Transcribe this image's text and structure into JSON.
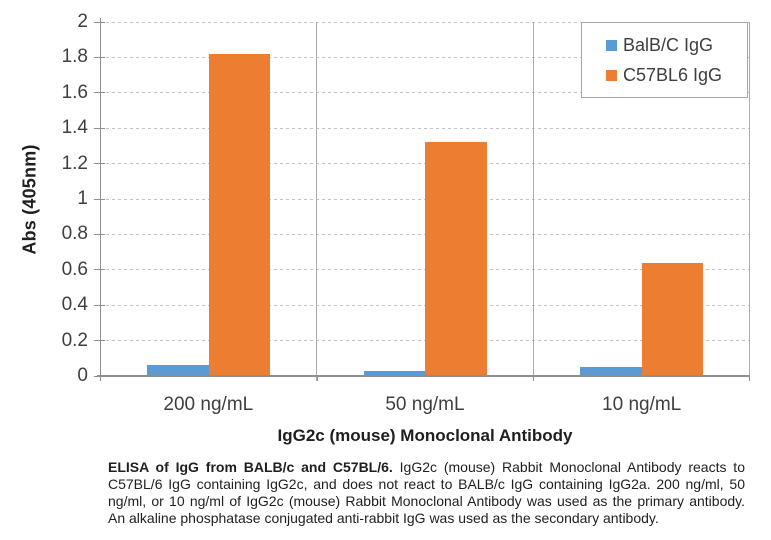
{
  "chart_data": {
    "type": "bar",
    "categories": [
      "200 ng/mL",
      "50 ng/mL",
      "10 ng/mL"
    ],
    "series": [
      {
        "name": "BalB/C IgG",
        "color": "#5B9BD5",
        "values": [
          0.06,
          0.03,
          0.05
        ]
      },
      {
        "name": "C57BL6 IgG",
        "color": "#ED7D31",
        "values": [
          1.82,
          1.32,
          0.64
        ]
      }
    ],
    "title": "",
    "xlabel": "IgG2c (mouse) Monoclonal Antibody",
    "ylabel": "Abs (405nm)",
    "ylim": [
      0,
      2
    ],
    "ytick_labels": [
      "2",
      "1.8",
      "1.6",
      "1.4",
      "1.2",
      "1",
      "0.8",
      "0.6",
      "0.4",
      "0.2",
      "0"
    ],
    "grid": "horizontal-dashed",
    "legend_position": "top-right",
    "colors": {
      "axis_line": "#8E8E8E",
      "gridline": "#C3C3C3",
      "separator": "#ABABAB",
      "tick_text": "#3F3F3F"
    }
  },
  "caption": {
    "bold": "ELISA of IgG from BALB/c and C57BL/6.",
    "text": " IgG2c (mouse) Rabbit Monoclonal Antibody reacts to C57BL/6 IgG containing IgG2c, and does not react to BALB/c IgG containing IgG2a. 200 ng/ml, 50 ng/ml, or 10 ng/ml of IgG2c (mouse) Rabbit Monoclonal Antibody was used as the primary antibody. An alkaline phosphatase conjugated anti-rabbit IgG was used as the secondary antibody."
  }
}
